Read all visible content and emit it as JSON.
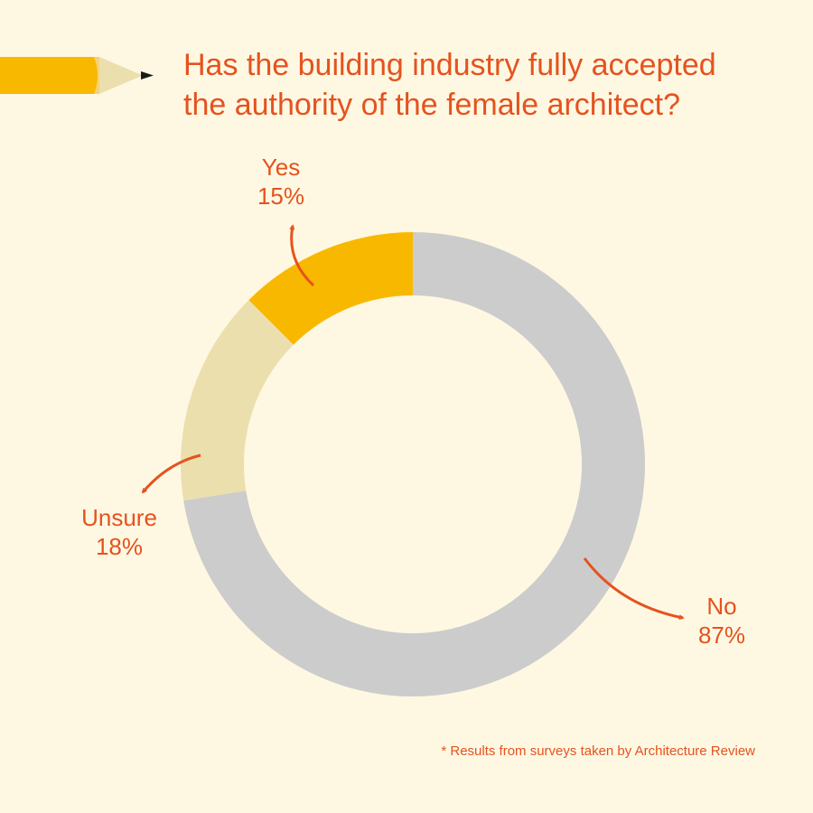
{
  "title": {
    "line1": "Has the building industry fully accepted",
    "line2": "the authority of the female architect?"
  },
  "footnote": "* Results from surveys taken by Architecture Review",
  "colors": {
    "background": "#fef8e3",
    "accent_text": "#e6521e",
    "pencil_body": "#f9b800",
    "pencil_wood": "#ecdfae",
    "pencil_tip": "#1a1a1a"
  },
  "icons": [
    "pencil-icon",
    "arrow-icon"
  ],
  "chart_data": {
    "type": "pie",
    "variant": "donut",
    "categories": [
      "Yes",
      "Unsure",
      "No"
    ],
    "values": [
      15,
      18,
      87
    ],
    "value_labels": [
      "15%",
      "18%",
      "87%"
    ],
    "colors": [
      "#f9b800",
      "#ecdfae",
      "#cccccc"
    ]
  }
}
